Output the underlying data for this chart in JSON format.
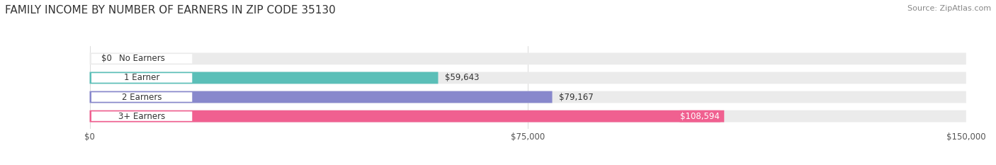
{
  "title": "FAMILY INCOME BY NUMBER OF EARNERS IN ZIP CODE 35130",
  "source": "Source: ZipAtlas.com",
  "categories": [
    "No Earners",
    "1 Earner",
    "2 Earners",
    "3+ Earners"
  ],
  "values": [
    0,
    59643,
    79167,
    108594
  ],
  "value_labels": [
    "$0",
    "$59,643",
    "$79,167",
    "$108,594"
  ],
  "bar_colors": [
    "#c8a0c8",
    "#5bbfb8",
    "#8888cc",
    "#f06090"
  ],
  "bar_bg_color": "#ebebeb",
  "label_text_colors": [
    "#444444",
    "#444444",
    "#444444",
    "#ffffff"
  ],
  "xlim": [
    0,
    150000
  ],
  "xtick_values": [
    0,
    75000,
    150000
  ],
  "xtick_labels": [
    "$0",
    "$75,000",
    "$150,000"
  ],
  "title_fontsize": 11,
  "bar_height": 0.62,
  "fig_bg_color": "#ffffff"
}
